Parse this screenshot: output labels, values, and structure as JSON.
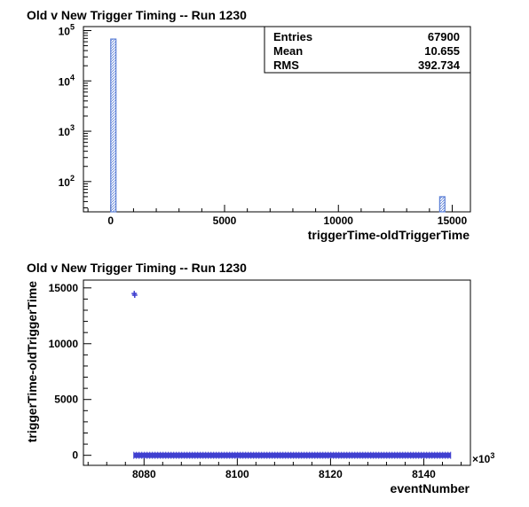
{
  "chart_data": [
    {
      "type": "bar",
      "title": "Old v New Trigger Timing -- Run 1230",
      "xlabel": "triggerTime-oldTriggerTime",
      "ylabel": "",
      "yscale": "log",
      "xlim": [
        -1200,
        15800
      ],
      "ylim": [
        25,
        120000
      ],
      "x_ticks": [
        0,
        5000,
        10000,
        15000
      ],
      "x_tick_labels": [
        "0",
        "5000",
        "10000",
        "15000"
      ],
      "y_ticks": [
        100,
        1000,
        10000,
        100000
      ],
      "y_tick_base": "10",
      "y_tick_exps": [
        "2",
        "3",
        "4",
        "5"
      ],
      "bars": [
        {
          "x0": 0,
          "x1": 230,
          "value": 67850
        },
        {
          "x0": 14450,
          "x1": 14680,
          "value": 50
        }
      ],
      "stats": {
        "rows": [
          {
            "label": "Entries",
            "value": "67900"
          },
          {
            "label": "Mean",
            "value": "10.655"
          },
          {
            "label": "RMS",
            "value": "392.734"
          }
        ]
      },
      "colors": {
        "bar": "#5b7fd6"
      }
    },
    {
      "type": "scatter",
      "title": "Old v New Trigger Timing -- Run 1230",
      "xlabel": "eventNumber",
      "ylabel": "triggerTime-oldTriggerTime",
      "x_multiplier_label": "×10",
      "x_multiplier_exp": "3",
      "xlim": [
        8067,
        8150
      ],
      "ylim": [
        -900,
        15700
      ],
      "x_ticks": [
        8080,
        8100,
        8120,
        8140
      ],
      "x_tick_labels": [
        "8080",
        "8100",
        "8120",
        "8140"
      ],
      "y_ticks": [
        0,
        5000,
        10000,
        15000
      ],
      "y_tick_labels": [
        "0",
        "5000",
        "10000",
        "15000"
      ],
      "points": [
        {
          "x": 8077.9,
          "y": 14500
        },
        {
          "x": 8078.0,
          "y": 14350
        }
      ],
      "band": {
        "x0": 8077.8,
        "x1": 8145.8,
        "y": 0
      },
      "colors": {
        "marker": "#4040d0"
      }
    }
  ]
}
